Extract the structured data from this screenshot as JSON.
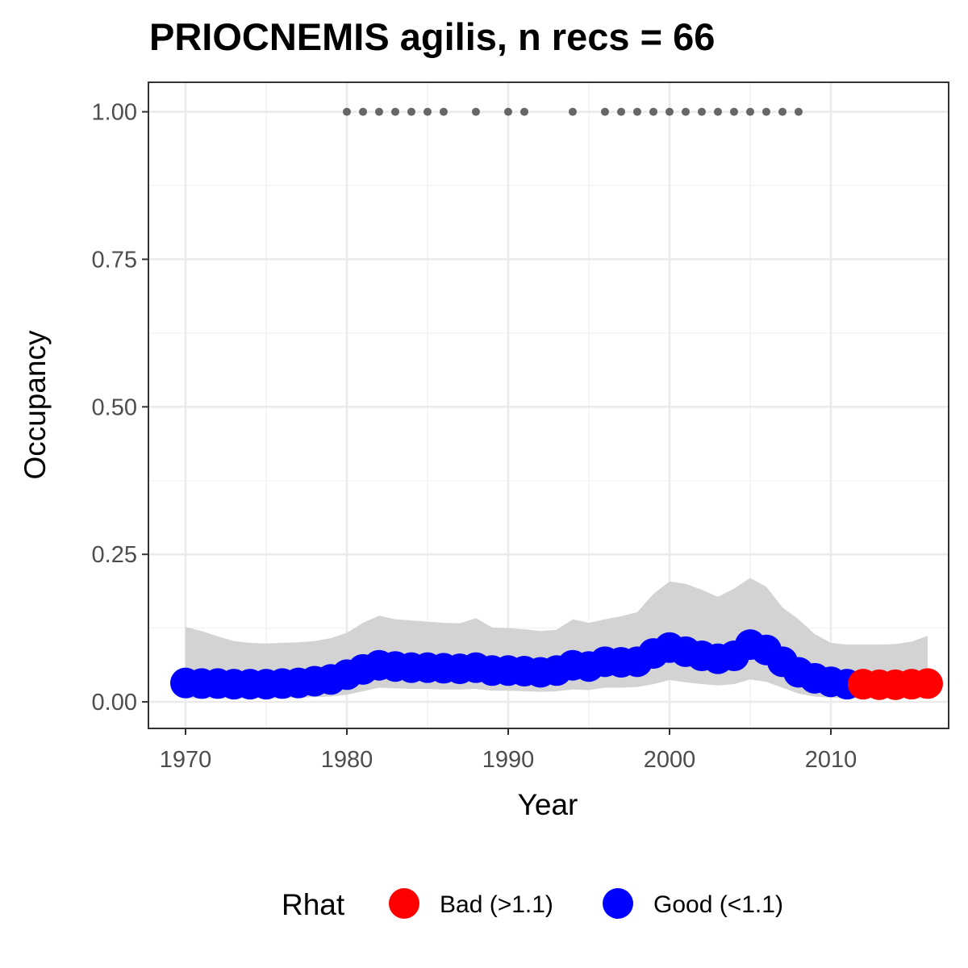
{
  "chart_data": {
    "type": "scatter",
    "title": "PRIOCNEMIS agilis, n recs = 66",
    "xlabel": "Year",
    "ylabel": "Occupancy",
    "xlim": [
      1967.7,
      2017.3
    ],
    "ylim": [
      -0.045,
      1.05
    ],
    "x_ticks": [
      1970,
      1980,
      1990,
      2000,
      2010
    ],
    "y_ticks": [
      0.0,
      0.25,
      0.5,
      0.75,
      1.0
    ],
    "y_tick_labels": [
      "0.00",
      "0.25",
      "0.50",
      "0.75",
      "1.00"
    ],
    "grid": true,
    "legend": {
      "title": "Rhat",
      "position": "bottom",
      "entries": [
        {
          "label": "Bad (>1.1)",
          "color": "#ff0000"
        },
        {
          "label": "Good (<1.1)",
          "color": "#0000ff"
        }
      ]
    },
    "colors": {
      "bad": "#ff0000",
      "good": "#0000ff",
      "ribbon": "#d3d3d3",
      "records": "#666666"
    },
    "years": [
      1970,
      1971,
      1972,
      1973,
      1974,
      1975,
      1976,
      1977,
      1978,
      1979,
      1980,
      1981,
      1982,
      1983,
      1984,
      1985,
      1986,
      1987,
      1988,
      1989,
      1990,
      1991,
      1992,
      1993,
      1994,
      1995,
      1996,
      1997,
      1998,
      1999,
      2000,
      2001,
      2002,
      2003,
      2004,
      2005,
      2006,
      2007,
      2008,
      2009,
      2010,
      2011,
      2012,
      2013,
      2014,
      2015,
      2016
    ],
    "occupancy": [
      0.032,
      0.031,
      0.031,
      0.03,
      0.03,
      0.03,
      0.031,
      0.032,
      0.035,
      0.038,
      0.046,
      0.055,
      0.062,
      0.06,
      0.058,
      0.058,
      0.057,
      0.056,
      0.058,
      0.053,
      0.053,
      0.052,
      0.05,
      0.053,
      0.062,
      0.06,
      0.068,
      0.067,
      0.068,
      0.082,
      0.092,
      0.085,
      0.078,
      0.073,
      0.078,
      0.097,
      0.088,
      0.068,
      0.05,
      0.04,
      0.034,
      0.03,
      0.03,
      0.029,
      0.029,
      0.03,
      0.031
    ],
    "lower": [
      0.006,
      0.006,
      0.006,
      0.006,
      0.006,
      0.006,
      0.006,
      0.007,
      0.008,
      0.009,
      0.012,
      0.018,
      0.024,
      0.023,
      0.022,
      0.022,
      0.021,
      0.021,
      0.022,
      0.019,
      0.019,
      0.018,
      0.017,
      0.018,
      0.021,
      0.02,
      0.024,
      0.024,
      0.025,
      0.03,
      0.037,
      0.033,
      0.03,
      0.028,
      0.03,
      0.038,
      0.034,
      0.024,
      0.014,
      0.009,
      0.007,
      0.006,
      0.006,
      0.006,
      0.006,
      0.006,
      0.006
    ],
    "upper": [
      0.127,
      0.12,
      0.111,
      0.103,
      0.1,
      0.099,
      0.1,
      0.101,
      0.103,
      0.108,
      0.117,
      0.134,
      0.146,
      0.14,
      0.138,
      0.136,
      0.134,
      0.133,
      0.142,
      0.126,
      0.125,
      0.123,
      0.12,
      0.122,
      0.14,
      0.134,
      0.14,
      0.145,
      0.152,
      0.183,
      0.204,
      0.2,
      0.19,
      0.178,
      0.192,
      0.21,
      0.195,
      0.16,
      0.14,
      0.115,
      0.1,
      0.097,
      0.097,
      0.097,
      0.098,
      0.102,
      0.112
    ],
    "rhat_good": [
      true,
      true,
      true,
      true,
      true,
      true,
      true,
      true,
      true,
      true,
      true,
      true,
      true,
      true,
      true,
      true,
      true,
      true,
      true,
      true,
      true,
      true,
      true,
      true,
      true,
      true,
      true,
      true,
      true,
      true,
      true,
      true,
      true,
      true,
      true,
      true,
      true,
      true,
      true,
      true,
      true,
      true,
      false,
      false,
      false,
      false,
      false
    ],
    "record_years": [
      1980,
      1981,
      1982,
      1983,
      1984,
      1985,
      1986,
      1988,
      1990,
      1991,
      1994,
      1996,
      1997,
      1998,
      1999,
      2000,
      2001,
      2002,
      2003,
      2004,
      2005,
      2006,
      2007,
      2008
    ],
    "record_value": 1.0
  }
}
